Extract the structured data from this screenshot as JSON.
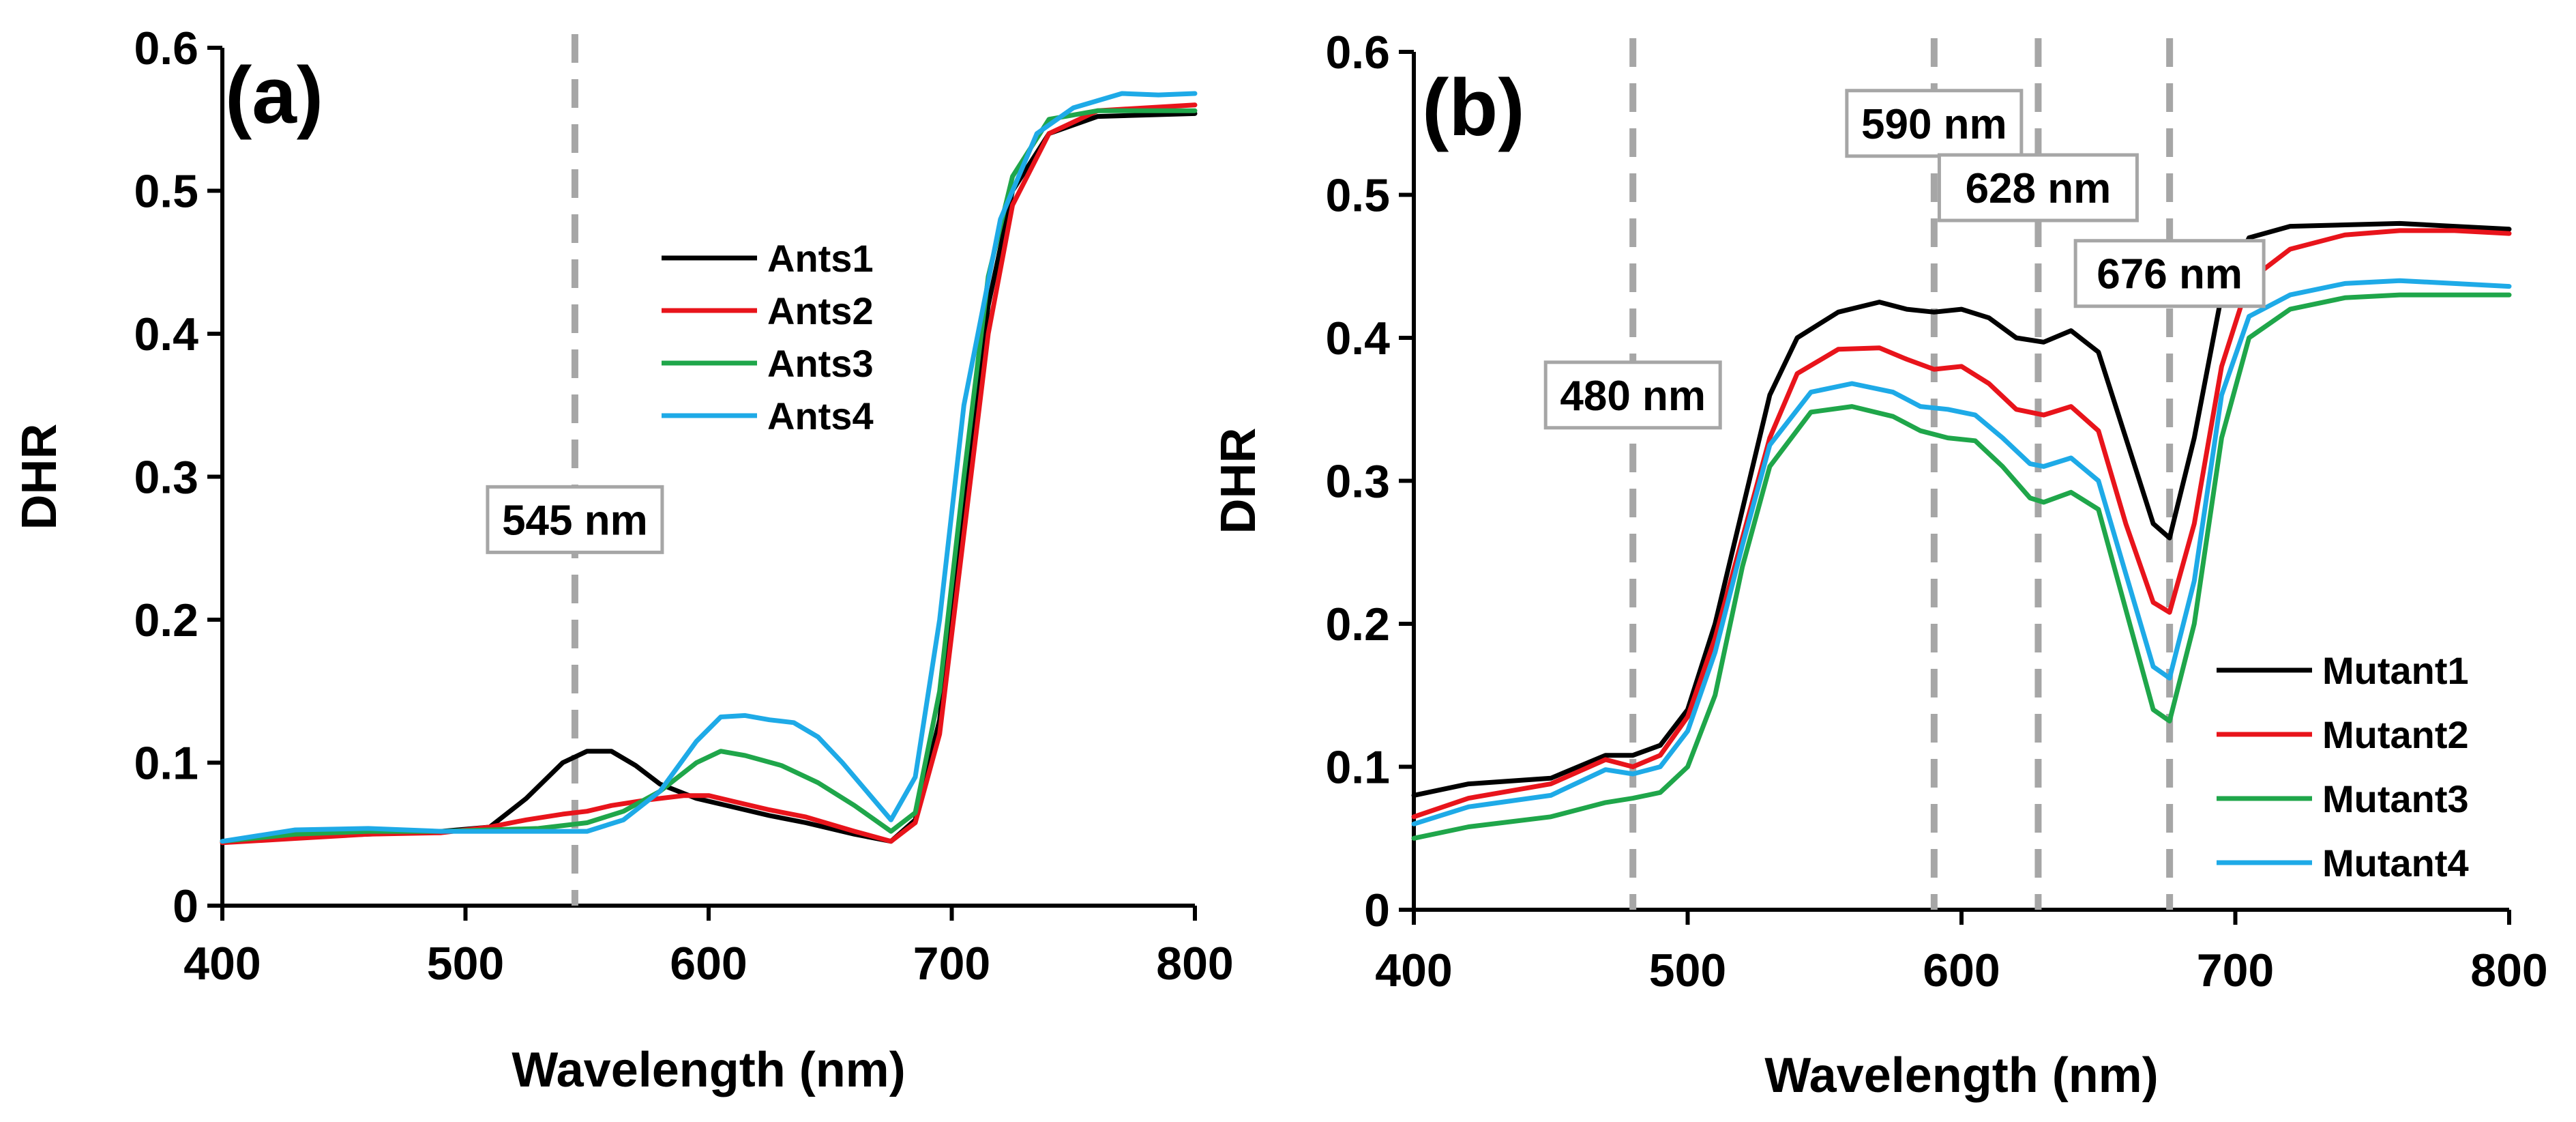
{
  "chart_data": [
    {
      "type": "line",
      "panel_label": "(a)",
      "xlabel": "Wavelength (nm)",
      "ylabel": "DHR",
      "xlim": [
        400,
        800
      ],
      "ylim": [
        0,
        0.6
      ],
      "xticks": [
        400,
        500,
        600,
        700,
        800
      ],
      "yticks": [
        0,
        0.1,
        0.2,
        0.3,
        0.4,
        0.5,
        0.6
      ],
      "ytick_labels": [
        "0",
        "0.1",
        "0.2",
        "0.3",
        "0.4",
        "0.5",
        "0.6"
      ],
      "legend_position": "upper-center",
      "vlines": [
        545
      ],
      "annotations": [
        {
          "text": "545 nm",
          "x": 545,
          "y": 0.27
        }
      ],
      "series": [
        {
          "name": "Ants1",
          "color": "#000000",
          "x": [
            400,
            430,
            460,
            490,
            510,
            525,
            540,
            550,
            560,
            570,
            580,
            595,
            610,
            625,
            640,
            660,
            675,
            685,
            695,
            705,
            715,
            725,
            740,
            760,
            780,
            800
          ],
          "y": [
            0.045,
            0.048,
            0.05,
            0.052,
            0.055,
            0.075,
            0.1,
            0.108,
            0.108,
            0.098,
            0.085,
            0.075,
            0.069,
            0.063,
            0.058,
            0.05,
            0.045,
            0.06,
            0.13,
            0.28,
            0.42,
            0.5,
            0.54,
            0.552,
            0.553,
            0.554
          ]
        },
        {
          "name": "Ants2",
          "color": "#e8141b",
          "x": [
            400,
            430,
            460,
            490,
            510,
            525,
            540,
            550,
            560,
            575,
            590,
            600,
            610,
            625,
            640,
            660,
            675,
            685,
            695,
            705,
            715,
            725,
            740,
            760,
            780,
            800
          ],
          "y": [
            0.044,
            0.047,
            0.05,
            0.051,
            0.055,
            0.06,
            0.064,
            0.066,
            0.07,
            0.074,
            0.077,
            0.077,
            0.073,
            0.067,
            0.062,
            0.052,
            0.045,
            0.058,
            0.12,
            0.26,
            0.4,
            0.49,
            0.54,
            0.556,
            0.558,
            0.56
          ]
        },
        {
          "name": "Ants3",
          "color": "#1fa64a",
          "x": [
            400,
            430,
            460,
            490,
            510,
            530,
            550,
            565,
            580,
            595,
            605,
            615,
            630,
            645,
            660,
            675,
            685,
            695,
            705,
            715,
            725,
            740,
            760,
            780,
            800
          ],
          "y": [
            0.045,
            0.05,
            0.052,
            0.052,
            0.053,
            0.054,
            0.058,
            0.066,
            0.08,
            0.1,
            0.108,
            0.105,
            0.098,
            0.086,
            0.07,
            0.052,
            0.065,
            0.15,
            0.3,
            0.44,
            0.51,
            0.55,
            0.556,
            0.556,
            0.556
          ]
        },
        {
          "name": "Ants4",
          "color": "#1eaae7",
          "x": [
            400,
            430,
            460,
            490,
            510,
            530,
            550,
            565,
            580,
            595,
            605,
            615,
            625,
            635,
            645,
            655,
            665,
            675,
            685,
            695,
            705,
            720,
            735,
            750,
            770,
            785,
            800
          ],
          "y": [
            0.045,
            0.053,
            0.054,
            0.052,
            0.052,
            0.052,
            0.052,
            0.06,
            0.08,
            0.115,
            0.132,
            0.133,
            0.13,
            0.128,
            0.118,
            0.1,
            0.08,
            0.06,
            0.09,
            0.2,
            0.35,
            0.48,
            0.54,
            0.558,
            0.568,
            0.567,
            0.568
          ]
        }
      ]
    },
    {
      "type": "line",
      "panel_label": "(b)",
      "xlabel": "Wavelength (nm)",
      "ylabel": "DHR",
      "xlim": [
        400,
        800
      ],
      "ylim": [
        0,
        0.6
      ],
      "xticks": [
        400,
        500,
        600,
        700,
        800
      ],
      "yticks": [
        0,
        0.1,
        0.2,
        0.3,
        0.4,
        0.5,
        0.6
      ],
      "ytick_labels": [
        "0",
        "0.1",
        "0.2",
        "0.3",
        "0.4",
        "0.5",
        "0.6"
      ],
      "legend_position": "lower-right",
      "vlines": [
        480,
        590,
        628,
        676
      ],
      "annotations": [
        {
          "text": "480 nm",
          "x": 480,
          "y": 0.36
        },
        {
          "text": "590 nm",
          "x": 590,
          "y": 0.55
        },
        {
          "text": "628 nm",
          "x": 628,
          "y": 0.505
        },
        {
          "text": "676 nm",
          "x": 676,
          "y": 0.445
        }
      ],
      "series": [
        {
          "name": "Mutant1",
          "color": "#000000",
          "x": [
            400,
            420,
            450,
            470,
            480,
            490,
            500,
            510,
            520,
            530,
            540,
            555,
            570,
            580,
            590,
            600,
            610,
            620,
            630,
            640,
            650,
            660,
            670,
            676,
            685,
            695,
            705,
            720,
            740,
            760,
            780,
            800
          ],
          "y": [
            0.08,
            0.088,
            0.092,
            0.108,
            0.108,
            0.115,
            0.14,
            0.2,
            0.28,
            0.36,
            0.4,
            0.418,
            0.425,
            0.42,
            0.418,
            0.42,
            0.414,
            0.4,
            0.397,
            0.405,
            0.39,
            0.33,
            0.27,
            0.26,
            0.33,
            0.43,
            0.47,
            0.478,
            0.479,
            0.48,
            0.478,
            0.476
          ]
        },
        {
          "name": "Mutant2",
          "color": "#e8141b",
          "x": [
            400,
            420,
            450,
            470,
            480,
            490,
            500,
            510,
            520,
            530,
            540,
            555,
            570,
            580,
            590,
            600,
            610,
            620,
            630,
            640,
            650,
            660,
            670,
            676,
            685,
            695,
            705,
            720,
            740,
            760,
            780,
            800
          ],
          "y": [
            0.065,
            0.078,
            0.088,
            0.105,
            0.1,
            0.108,
            0.135,
            0.19,
            0.26,
            0.33,
            0.375,
            0.392,
            0.393,
            0.385,
            0.378,
            0.38,
            0.368,
            0.35,
            0.346,
            0.352,
            0.335,
            0.27,
            0.215,
            0.208,
            0.27,
            0.38,
            0.44,
            0.462,
            0.472,
            0.475,
            0.475,
            0.473
          ]
        },
        {
          "name": "Mutant3",
          "color": "#1fa64a",
          "x": [
            400,
            420,
            450,
            470,
            480,
            490,
            500,
            510,
            520,
            530,
            545,
            560,
            575,
            585,
            595,
            605,
            615,
            625,
            630,
            640,
            650,
            660,
            670,
            676,
            685,
            695,
            705,
            720,
            740,
            760,
            780,
            800
          ],
          "y": [
            0.05,
            0.058,
            0.065,
            0.075,
            0.078,
            0.082,
            0.1,
            0.15,
            0.24,
            0.31,
            0.348,
            0.352,
            0.345,
            0.335,
            0.33,
            0.328,
            0.31,
            0.288,
            0.285,
            0.292,
            0.28,
            0.21,
            0.14,
            0.132,
            0.2,
            0.33,
            0.4,
            0.42,
            0.428,
            0.43,
            0.43,
            0.43
          ]
        },
        {
          "name": "Mutant4",
          "color": "#1eaae7",
          "x": [
            400,
            420,
            450,
            470,
            480,
            490,
            500,
            510,
            520,
            530,
            545,
            560,
            575,
            585,
            595,
            605,
            615,
            625,
            630,
            640,
            650,
            660,
            670,
            676,
            685,
            695,
            705,
            720,
            740,
            760,
            780,
            800
          ],
          "y": [
            0.06,
            0.072,
            0.08,
            0.098,
            0.095,
            0.1,
            0.125,
            0.18,
            0.255,
            0.325,
            0.362,
            0.368,
            0.362,
            0.352,
            0.35,
            0.346,
            0.33,
            0.312,
            0.31,
            0.316,
            0.3,
            0.235,
            0.17,
            0.162,
            0.23,
            0.36,
            0.415,
            0.43,
            0.438,
            0.44,
            0.438,
            0.436
          ]
        }
      ]
    }
  ]
}
